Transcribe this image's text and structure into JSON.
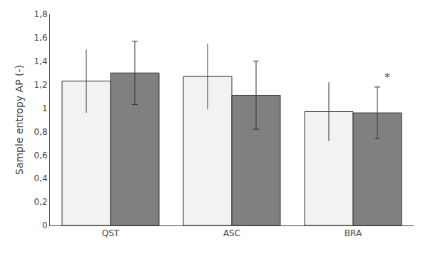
{
  "chart_data": {
    "type": "bar",
    "ylabel": "Sample entropy AP (-)",
    "categories": [
      "QST",
      "ASC",
      "BRA"
    ],
    "series": [
      {
        "color": "#f2f2f2",
        "values": [
          1.23,
          1.27,
          0.97
        ],
        "errors": [
          0.27,
          0.28,
          0.25
        ]
      },
      {
        "color": "#808080",
        "values": [
          1.3,
          1.11,
          0.96
        ],
        "errors": [
          0.27,
          0.29,
          0.22
        ]
      }
    ],
    "ylim": [
      0,
      1.8
    ],
    "yticks": [
      0,
      {
        "value": 0.2,
        "label": "0,2"
      },
      {
        "value": 0.4,
        "label": "0,4"
      },
      {
        "value": 0.6,
        "label": "0,6"
      },
      {
        "value": 0.8,
        "label": "0,8"
      },
      1,
      {
        "value": 1.2,
        "label": "1,2"
      },
      {
        "value": 1.4,
        "label": "1,4"
      },
      {
        "value": 1.6,
        "label": "1,6"
      },
      {
        "value": 1.8,
        "label": "1,8"
      }
    ],
    "annotations": [
      {
        "text": "*",
        "category": "BRA"
      }
    ],
    "grid": false
  }
}
